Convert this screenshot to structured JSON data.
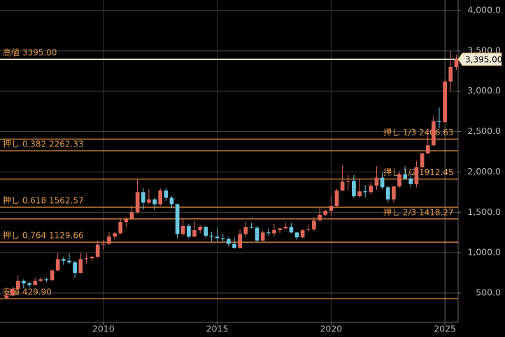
{
  "chart_data": {
    "type": "candlestick",
    "xlim": [
      2005.46,
      2025.58
    ],
    "ylim": [
      137,
      4130
    ],
    "xticks": [
      2010,
      2015,
      2020,
      2025
    ],
    "yticks": [
      {
        "value": 500,
        "label": "500.0"
      },
      {
        "value": 1000,
        "label": "1,000.0"
      },
      {
        "value": 1500,
        "label": "1,500.0"
      },
      {
        "value": 2000,
        "label": "2,000.0"
      },
      {
        "value": 2500,
        "label": "2,500.0"
      },
      {
        "value": 3000,
        "label": "3,000.0"
      },
      {
        "value": 3500,
        "label": "3,500.0"
      },
      {
        "value": 4000,
        "label": "4,000.0"
      }
    ],
    "grid": true,
    "up_color": "#e0665a",
    "down_color": "#6cc8e0",
    "level_color": "#c8803a",
    "x": [
      2005.75,
      2006,
      2006.25,
      2006.5,
      2006.75,
      2007,
      2007.25,
      2007.5,
      2007.75,
      2008,
      2008.25,
      2008.5,
      2008.75,
      2009,
      2009.25,
      2009.5,
      2009.75,
      2010,
      2010.25,
      2010.5,
      2010.75,
      2011,
      2011.25,
      2011.5,
      2011.75,
      2012,
      2012.25,
      2012.5,
      2012.75,
      2013,
      2013.25,
      2013.5,
      2013.75,
      2014,
      2014.25,
      2014.5,
      2014.75,
      2015,
      2015.25,
      2015.5,
      2015.75,
      2016,
      2016.25,
      2016.5,
      2016.75,
      2017,
      2017.25,
      2017.5,
      2017.75,
      2018,
      2018.25,
      2018.5,
      2018.75,
      2019,
      2019.25,
      2019.5,
      2019.75,
      2020,
      2020.25,
      2020.5,
      2020.75,
      2021,
      2021.25,
      2021.5,
      2021.75,
      2022,
      2022.25,
      2022.5,
      2022.75,
      2023,
      2023.25,
      2023.5,
      2023.75,
      2024,
      2024.25,
      2024.5,
      2024.75,
      2025,
      2025.25,
      2025.5
    ],
    "open": [
      440,
      470,
      550,
      650,
      620,
      600,
      650,
      670,
      660,
      780,
      920,
      900,
      880,
      750,
      920,
      930,
      950,
      1100,
      1110,
      1200,
      1240,
      1380,
      1420,
      1500,
      1750,
      1620,
      1660,
      1600,
      1770,
      1680,
      1600,
      1230,
      1330,
      1200,
      1280,
      1320,
      1210,
      1200,
      1180,
      1170,
      1110,
      1060,
      1230,
      1320,
      1310,
      1150,
      1250,
      1240,
      1280,
      1300,
      1320,
      1250,
      1190,
      1280,
      1290,
      1400,
      1470,
      1520,
      1580,
      1770,
      1880,
      1890,
      1700,
      1760,
      1750,
      1830,
      1930,
      1810,
      1660,
      1820,
      1970,
      1920,
      1850,
      2060,
      2230,
      2330,
      2630,
      2620,
      3120,
      3300
    ],
    "high": [
      485,
      570,
      720,
      670,
      640,
      690,
      700,
      690,
      800,
      1000,
      950,
      990,
      900,
      1000,
      990,
      960,
      1150,
      1160,
      1250,
      1260,
      1420,
      1440,
      1580,
      1920,
      1800,
      1790,
      1680,
      1800,
      1800,
      1700,
      1610,
      1430,
      1360,
      1390,
      1340,
      1330,
      1260,
      1310,
      1230,
      1190,
      1190,
      1290,
      1380,
      1370,
      1330,
      1270,
      1300,
      1360,
      1310,
      1370,
      1370,
      1260,
      1290,
      1350,
      1440,
      1560,
      1530,
      1700,
      1790,
      2080,
      1970,
      1960,
      1910,
      1840,
      1880,
      2070,
      1990,
      1830,
      1830,
      2010,
      2070,
      1990,
      2140,
      2240,
      2450,
      2690,
      2800,
      3150,
      3500,
      3450
    ],
    "low": [
      430,
      460,
      540,
      560,
      570,
      590,
      640,
      640,
      650,
      770,
      850,
      860,
      690,
      740,
      860,
      900,
      940,
      1040,
      1100,
      1160,
      1230,
      1310,
      1410,
      1480,
      1530,
      1600,
      1530,
      1580,
      1640,
      1550,
      1180,
      1210,
      1180,
      1190,
      1240,
      1180,
      1140,
      1140,
      1140,
      1080,
      1050,
      1050,
      1200,
      1300,
      1120,
      1140,
      1210,
      1200,
      1240,
      1300,
      1240,
      1160,
      1180,
      1270,
      1270,
      1390,
      1450,
      1450,
      1560,
      1760,
      1770,
      1680,
      1680,
      1690,
      1720,
      1780,
      1790,
      1620,
      1620,
      1800,
      1900,
      1810,
      1810,
      1990,
      2220,
      2320,
      2540,
      2610,
      3000,
      3260
    ],
    "close": [
      470,
      550,
      650,
      620,
      600,
      650,
      670,
      660,
      780,
      920,
      900,
      880,
      750,
      920,
      930,
      950,
      1100,
      1110,
      1200,
      1240,
      1380,
      1420,
      1500,
      1750,
      1620,
      1660,
      1600,
      1770,
      1680,
      1600,
      1230,
      1330,
      1200,
      1280,
      1320,
      1210,
      1200,
      1180,
      1170,
      1110,
      1060,
      1230,
      1320,
      1310,
      1150,
      1250,
      1240,
      1280,
      1300,
      1320,
      1250,
      1190,
      1280,
      1290,
      1400,
      1470,
      1520,
      1580,
      1770,
      1880,
      1890,
      1700,
      1760,
      1750,
      1830,
      1930,
      1810,
      1660,
      1820,
      1970,
      1920,
      1850,
      2060,
      2230,
      2330,
      2630,
      2620,
      3120,
      3300,
      3395
    ],
    "levels": [
      {
        "label": "高値 3395.00",
        "value": 3395.0
      },
      {
        "label": "押し 1/3 2406.63",
        "value": 2406.63
      },
      {
        "label": "押し 0.382 2262.33",
        "value": 2262.33
      },
      {
        "label": "押し 1/2 1912.45",
        "value": 1912.45
      },
      {
        "label": "押し 0.618 1562.57",
        "value": 1562.57
      },
      {
        "label": "押し 2/3 1418.27",
        "value": 1418.27
      },
      {
        "label": "押し 0.764 1129.66",
        "value": 1129.66
      },
      {
        "label": "安値 429.90",
        "value": 429.9
      }
    ],
    "last_price": {
      "value": 3395,
      "label": "3,395.00"
    }
  }
}
